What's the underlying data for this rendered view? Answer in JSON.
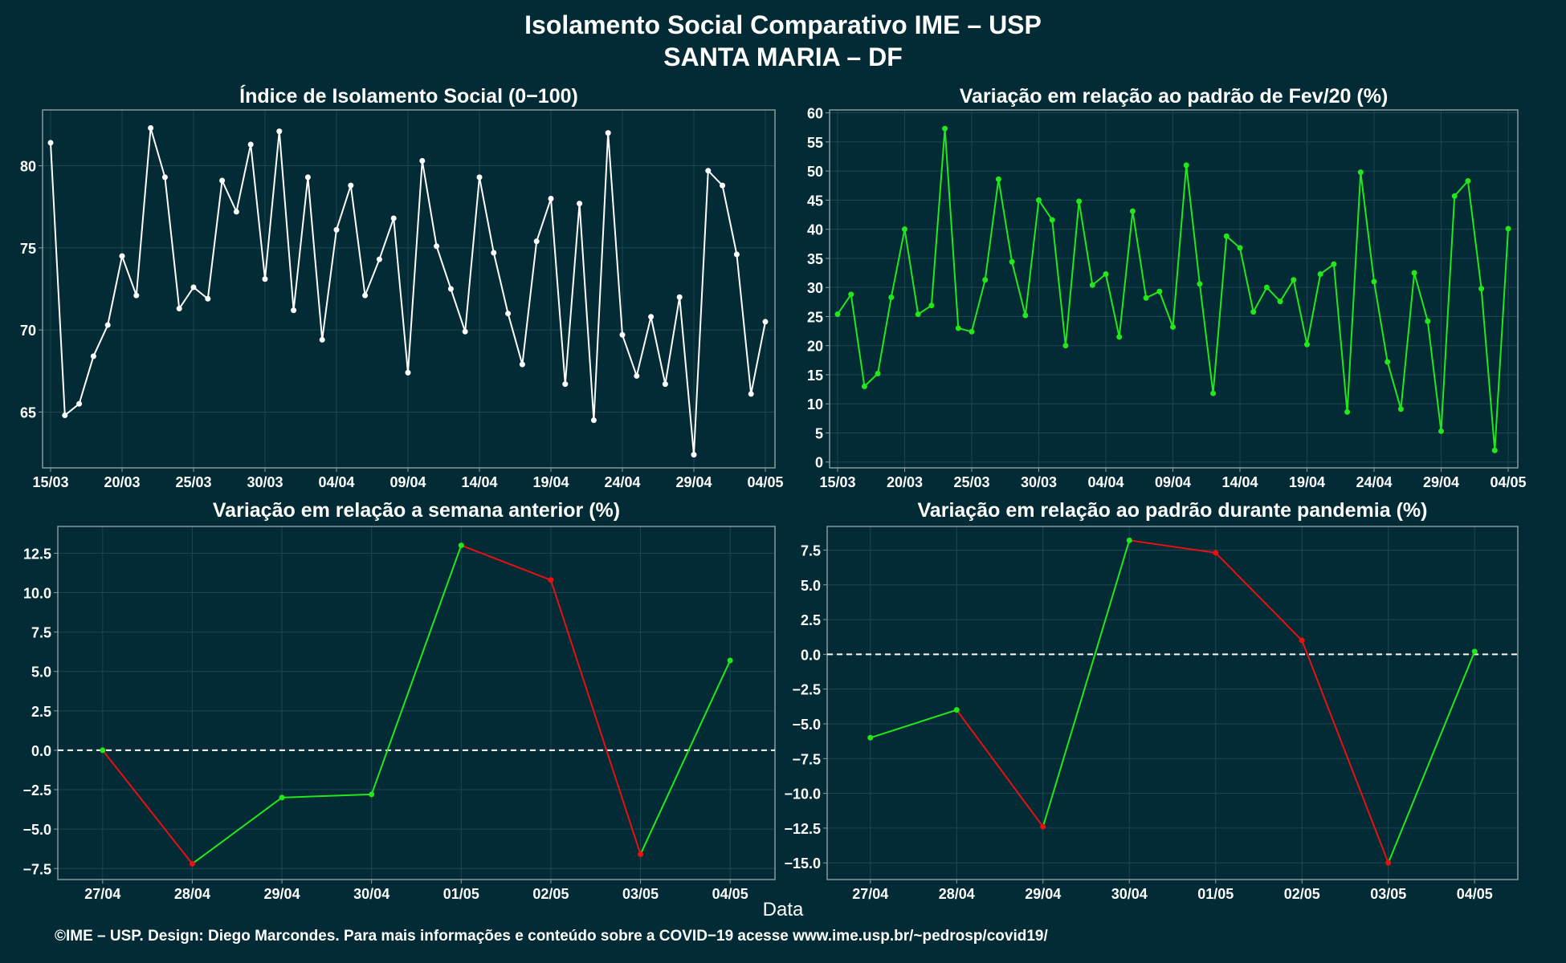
{
  "page": {
    "title_line1": "Isolamento Social Comparativo IME – USP",
    "title_line2": "SANTA MARIA – DF",
    "x_caption": "Data",
    "footer": "©IME – USP. Design: Diego Marcondes. Para mais informações e conteúdo sobre a COVID−19 acesse www.ime.usp.br/~pedrosp/covid19/"
  },
  "colors": {
    "background": "#022b35",
    "panel_border": "#8a9aa0",
    "grid": "#1e4650",
    "white_series": "#ffffff",
    "green_series": "#22e81a",
    "red_series": "#e81010",
    "zero_line": "#ffffff"
  },
  "chart_data": [
    {
      "type": "line",
      "title": "Índice de Isolamento Social (0−100)",
      "xlabel": "",
      "ylabel": "",
      "x_start": "15/03",
      "x_end": "04/05",
      "x_tick_labels": [
        "15/03",
        "20/03",
        "25/03",
        "30/03",
        "04/04",
        "09/04",
        "14/04",
        "19/04",
        "24/04",
        "29/04",
        "04/05"
      ],
      "y_tick_labels": [
        "65",
        "70",
        "75",
        "80"
      ],
      "ylim": [
        61.6,
        83.4
      ],
      "grid": true,
      "color": "white",
      "values": [
        81.4,
        64.8,
        65.5,
        68.4,
        70.3,
        74.5,
        72.1,
        82.3,
        79.3,
        71.3,
        72.6,
        71.9,
        79.1,
        77.2,
        81.3,
        73.1,
        82.1,
        71.2,
        79.3,
        69.4,
        76.1,
        78.8,
        72.1,
        74.3,
        76.8,
        67.4,
        80.3,
        75.1,
        72.5,
        69.9,
        79.3,
        74.7,
        71.0,
        67.9,
        75.4,
        78.0,
        66.7,
        77.7,
        64.5,
        82.0,
        69.7,
        67.2,
        70.8,
        66.7,
        72.0,
        62.4,
        79.7,
        78.8,
        74.6,
        66.1,
        70.5
      ]
    },
    {
      "type": "line",
      "title": "Variação em relação ao padrão de Fev/20 (%)",
      "xlabel": "",
      "ylabel": "",
      "x_start": "15/03",
      "x_end": "04/05",
      "x_tick_labels": [
        "15/03",
        "20/03",
        "25/03",
        "30/03",
        "04/04",
        "09/04",
        "14/04",
        "19/04",
        "24/04",
        "29/04",
        "04/05"
      ],
      "y_tick_labels": [
        "0",
        "5",
        "10",
        "15",
        "20",
        "25",
        "30",
        "35",
        "40",
        "45",
        "50",
        "55",
        "60"
      ],
      "ylim": [
        -1,
        60.5
      ],
      "grid": true,
      "color": "green",
      "values": [
        25.4,
        28.8,
        13.0,
        15.2,
        28.3,
        40.0,
        25.4,
        26.9,
        57.3,
        23.0,
        22.4,
        31.3,
        48.6,
        34.4,
        25.2,
        45.0,
        41.6,
        20.0,
        44.8,
        30.4,
        32.3,
        21.5,
        43.1,
        28.2,
        29.3,
        23.2,
        51.0,
        30.6,
        11.8,
        38.8,
        36.8,
        25.8,
        30.0,
        27.6,
        31.3,
        20.2,
        32.3,
        34.0,
        8.6,
        49.8,
        31.0,
        17.2,
        9.1,
        32.5,
        24.2,
        5.3,
        45.7,
        48.3,
        29.8,
        2.0,
        40.1
      ]
    },
    {
      "type": "line",
      "title": "Variação em relação a semana anterior (%)",
      "xlabel": "",
      "ylabel": "",
      "categories": [
        "27/04",
        "28/04",
        "29/04",
        "30/04",
        "01/05",
        "02/05",
        "03/05",
        "04/05"
      ],
      "y_tick_labels": [
        "−7.5",
        "−5.0",
        "−2.5",
        "0.0",
        "2.5",
        "5.0",
        "7.5",
        "10.0",
        "12.5"
      ],
      "ylim": [
        -8.2,
        14.2
      ],
      "zero_line": true,
      "grid": true,
      "colored_by_direction": "green up, red down",
      "values": [
        0.0,
        -7.2,
        -3.0,
        -2.8,
        13.0,
        10.8,
        -6.6,
        5.7
      ]
    },
    {
      "type": "line",
      "title": "Variação em relação ao padrão durante pandemia (%)",
      "xlabel": "",
      "ylabel": "",
      "categories": [
        "27/04",
        "28/04",
        "29/04",
        "30/04",
        "01/05",
        "02/05",
        "03/05",
        "04/05"
      ],
      "y_tick_labels": [
        "−15.0",
        "−12.5",
        "−10.0",
        "−7.5",
        "−5.0",
        "−2.5",
        "0.0",
        "2.5",
        "5.0",
        "7.5"
      ],
      "ylim": [
        -16.2,
        9.2
      ],
      "zero_line": true,
      "grid": true,
      "colored_by_direction": "green up, red down",
      "values": [
        -6.0,
        -4.0,
        -12.4,
        8.2,
        7.3,
        1.0,
        -15.0,
        0.2
      ]
    }
  ]
}
